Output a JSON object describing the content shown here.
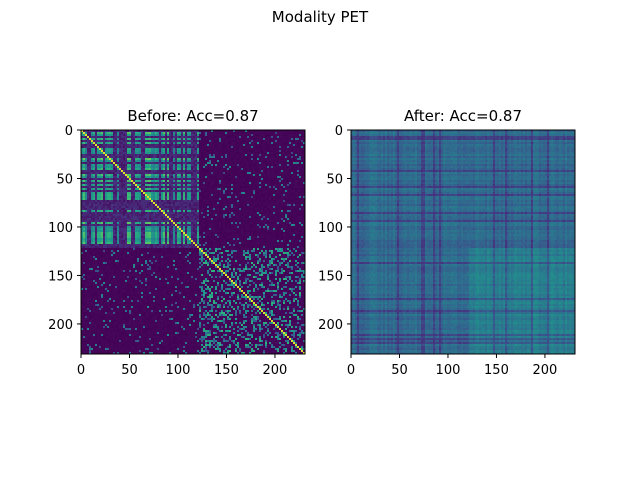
{
  "figure": {
    "suptitle": "Modality PET"
  },
  "chart_data": [
    {
      "type": "heatmap",
      "title": "Before: Acc=0.87",
      "matrix_size": 231,
      "xticks": [
        0,
        50,
        100,
        150,
        200
      ],
      "yticks": [
        0,
        50,
        100,
        150,
        200
      ],
      "xlim": [
        0,
        231
      ],
      "ylim": [
        231,
        0
      ],
      "colormap": "viridis",
      "blocks": [
        {
          "rows": [
            0,
            120
          ],
          "cols": [
            0,
            120
          ],
          "pattern": "dense-bright"
        },
        {
          "rows": [
            120,
            231
          ],
          "cols": [
            120,
            231
          ],
          "pattern": "medium"
        },
        {
          "rows": [
            0,
            120
          ],
          "cols": [
            120,
            231
          ],
          "pattern": "sparse-dark"
        },
        {
          "rows": [
            120,
            231
          ],
          "cols": [
            0,
            120
          ],
          "pattern": "sparse-dark"
        }
      ]
    },
    {
      "type": "heatmap",
      "title": "After: Acc=0.87",
      "matrix_size": 231,
      "xticks": [
        0,
        50,
        100,
        150,
        200
      ],
      "yticks": [
        0,
        50,
        100,
        150,
        200
      ],
      "xlim": [
        0,
        231
      ],
      "ylim": [
        231,
        0
      ],
      "colormap": "viridis",
      "pattern": "smooth-mid",
      "bright_region": {
        "rows": [
          120,
          231
        ],
        "cols": [
          120,
          231
        ]
      }
    }
  ]
}
